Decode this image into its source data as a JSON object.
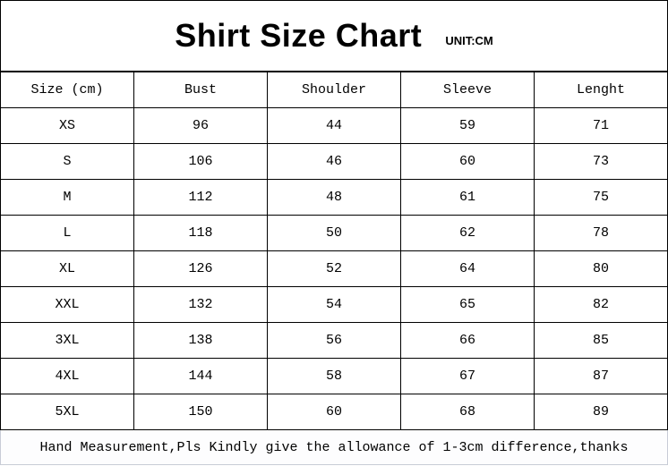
{
  "title": "Shirt Size Chart",
  "unit": "UNIT:CM",
  "chart_data": {
    "type": "table",
    "title": "Shirt Size Chart",
    "columns": [
      "Size (cm)",
      "Bust",
      "Shoulder",
      "Sleeve",
      "Lenght"
    ],
    "rows": [
      [
        "XS",
        "96",
        "44",
        "59",
        "71"
      ],
      [
        "S",
        "106",
        "46",
        "60",
        "73"
      ],
      [
        "M",
        "112",
        "48",
        "61",
        "75"
      ],
      [
        "L",
        "118",
        "50",
        "62",
        "78"
      ],
      [
        "XL",
        "126",
        "52",
        "64",
        "80"
      ],
      [
        "XXL",
        "132",
        "54",
        "65",
        "82"
      ],
      [
        "3XL",
        "138",
        "56",
        "66",
        "85"
      ],
      [
        "4XL",
        "144",
        "58",
        "67",
        "87"
      ],
      [
        "5XL",
        "150",
        "60",
        "68",
        "89"
      ]
    ]
  },
  "footer": "Hand Measurement,Pls Kindly give the allowance of 1-3cm difference,thanks"
}
